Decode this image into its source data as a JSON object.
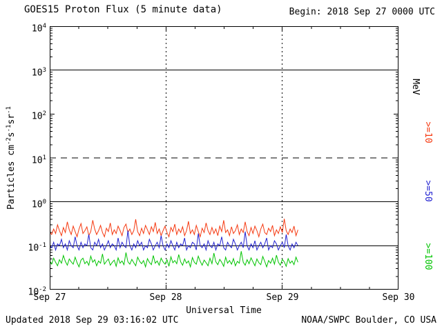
{
  "header": {
    "title": "GOES15 Proton Flux (5 minute data)",
    "begin_label": "Begin: 2018 Sep 27 0000 UTC"
  },
  "footer": {
    "updated": "Updated 2018 Sep 29 03:16:02 UTC",
    "credit": "NOAA/SWPC Boulder, CO USA"
  },
  "axes": {
    "x_label": "Universal Time",
    "x_ticks": [
      "Sep 27",
      "Sep 28",
      "Sep 29",
      "Sep 30"
    ],
    "y_ticks": [
      {
        "b": "10",
        "e": "4"
      },
      {
        "b": "10",
        "e": "3"
      },
      {
        "b": "10",
        "e": "2"
      },
      {
        "b": "10",
        "e": "1"
      },
      {
        "b": "10",
        "e": "0"
      },
      {
        "b": "10",
        "e": "-1"
      },
      {
        "b": "10",
        "e": "-2"
      }
    ],
    "y_label": {
      "p1": "Particles cm",
      "e1": "-2",
      "p2": "s",
      "e2": "-1",
      "p3": "sr",
      "e3": "-1"
    }
  },
  "right_labels": {
    "unit": "MeV",
    "ge10": ">=10",
    "ge50": ">=50",
    "ge100": ">=100"
  },
  "colors": {
    "ge10": "#f5380f",
    "ge50": "#2020d0",
    "ge100": "#00c400",
    "frame": "#000000"
  },
  "chart_data": {
    "type": "line",
    "title": "GOES15 Proton Flux (5 minute data)",
    "xlabel": "Universal Time",
    "ylabel": "Particles cm^-2 s^-1 sr^-1",
    "begin": "2018 Sep 27 0000 UTC",
    "updated": "2018 Sep 29 03:16:02 UTC",
    "y_scale": "log",
    "ylim": [
      0.01,
      10000
    ],
    "x_span_days": 3,
    "x_tick_labels": [
      "Sep 27",
      "Sep 28",
      "Sep 29",
      "Sep 30"
    ],
    "gridlines": {
      "h_solid": [
        1000,
        1,
        0.1
      ],
      "h_dashed": [
        10
      ],
      "v_dashed_days": [
        1,
        2
      ]
    },
    "series": [
      {
        "key": "ge10",
        "name": ">=10 MeV",
        "color": "#f5380f",
        "start_day": 0,
        "end_day": 2.135,
        "values": [
          0.21,
          0.18,
          0.24,
          0.19,
          0.3,
          0.22,
          0.17,
          0.26,
          0.2,
          0.35,
          0.23,
          0.18,
          0.28,
          0.21,
          0.16,
          0.24,
          0.32,
          0.19,
          0.22,
          0.27,
          0.17,
          0.21,
          0.38,
          0.24,
          0.18,
          0.22,
          0.29,
          0.2,
          0.16,
          0.25,
          0.21,
          0.33,
          0.18,
          0.23,
          0.19,
          0.28,
          0.22,
          0.17,
          0.26,
          0.31,
          0.2,
          0.24,
          0.18,
          0.22,
          0.4,
          0.21,
          0.17,
          0.25,
          0.19,
          0.29,
          0.23,
          0.18,
          0.27,
          0.21,
          0.34,
          0.19,
          0.24,
          0.17,
          0.22,
          0.28,
          0.2,
          0.16,
          0.26,
          0.21,
          0.31,
          0.18,
          0.24,
          0.2,
          0.27,
          0.17,
          0.22,
          0.36,
          0.19,
          0.23,
          0.18,
          0.29,
          0.21,
          0.16,
          0.25,
          0.2,
          0.33,
          0.22,
          0.18,
          0.26,
          0.19,
          0.24,
          0.17,
          0.28,
          0.21,
          0.38,
          0.2,
          0.23,
          0.17,
          0.27,
          0.19,
          0.22,
          0.3,
          0.18,
          0.24,
          0.2,
          0.35,
          0.21,
          0.17,
          0.26,
          0.19,
          0.28,
          0.22,
          0.16,
          0.24,
          0.31,
          0.2,
          0.18,
          0.25,
          0.21,
          0.29,
          0.17,
          0.23,
          0.19,
          0.27,
          0.2,
          0.41,
          0.22,
          0.18,
          0.24,
          0.2,
          0.28,
          0.17,
          0.23
        ]
      },
      {
        "key": "ge50",
        "name": ">=50 MeV",
        "color": "#2020d0",
        "start_day": 0,
        "end_day": 2.135,
        "values": [
          0.1,
          0.09,
          0.12,
          0.08,
          0.11,
          0.1,
          0.14,
          0.09,
          0.11,
          0.08,
          0.13,
          0.1,
          0.09,
          0.16,
          0.1,
          0.08,
          0.12,
          0.09,
          0.11,
          0.1,
          0.18,
          0.09,
          0.08,
          0.12,
          0.1,
          0.14,
          0.09,
          0.11,
          0.08,
          0.1,
          0.13,
          0.09,
          0.11,
          0.1,
          0.08,
          0.15,
          0.09,
          0.12,
          0.1,
          0.09,
          0.22,
          0.1,
          0.08,
          0.11,
          0.09,
          0.13,
          0.1,
          0.12,
          0.08,
          0.1,
          0.09,
          0.14,
          0.11,
          0.08,
          0.1,
          0.12,
          0.09,
          0.17,
          0.1,
          0.08,
          0.11,
          0.09,
          0.13,
          0.1,
          0.08,
          0.12,
          0.09,
          0.11,
          0.1,
          0.15,
          0.08,
          0.1,
          0.09,
          0.12,
          0.11,
          0.08,
          0.19,
          0.1,
          0.09,
          0.11,
          0.08,
          0.13,
          0.1,
          0.09,
          0.12,
          0.08,
          0.11,
          0.1,
          0.16,
          0.09,
          0.08,
          0.12,
          0.1,
          0.09,
          0.14,
          0.11,
          0.08,
          0.1,
          0.12,
          0.09,
          0.21,
          0.1,
          0.08,
          0.11,
          0.09,
          0.13,
          0.08,
          0.1,
          0.12,
          0.09,
          0.11,
          0.15,
          0.08,
          0.1,
          0.09,
          0.13,
          0.11,
          0.08,
          0.1,
          0.12,
          0.09,
          0.18,
          0.1,
          0.08,
          0.11,
          0.09,
          0.12,
          0.1
        ]
      },
      {
        "key": "ge100",
        "name": ">=100 MeV",
        "color": "#00c400",
        "start_day": 0,
        "end_day": 2.135,
        "values": [
          0.045,
          0.038,
          0.052,
          0.042,
          0.035,
          0.048,
          0.04,
          0.06,
          0.044,
          0.036,
          0.05,
          0.043,
          0.038,
          0.055,
          0.041,
          0.033,
          0.047,
          0.052,
          0.039,
          0.044,
          0.036,
          0.058,
          0.042,
          0.048,
          0.035,
          0.045,
          0.04,
          0.065,
          0.038,
          0.044,
          0.05,
          0.036,
          0.042,
          0.047,
          0.034,
          0.053,
          0.04,
          0.045,
          0.037,
          0.07,
          0.043,
          0.038,
          0.049,
          0.041,
          0.035,
          0.055,
          0.044,
          0.039,
          0.046,
          0.033,
          0.051,
          0.042,
          0.037,
          0.06,
          0.04,
          0.045,
          0.036,
          0.052,
          0.043,
          0.038,
          0.048,
          0.034,
          0.056,
          0.041,
          0.046,
          0.039,
          0.063,
          0.043,
          0.036,
          0.05,
          0.04,
          0.045,
          0.033,
          0.054,
          0.042,
          0.038,
          0.058,
          0.044,
          0.036,
          0.047,
          0.041,
          0.035,
          0.052,
          0.039,
          0.068,
          0.043,
          0.037,
          0.049,
          0.042,
          0.034,
          0.055,
          0.04,
          0.046,
          0.038,
          0.051,
          0.035,
          0.044,
          0.04,
          0.075,
          0.042,
          0.036,
          0.048,
          0.039,
          0.053,
          0.043,
          0.035,
          0.05,
          0.041,
          0.037,
          0.057,
          0.044,
          0.033,
          0.046,
          0.04,
          0.052,
          0.038,
          0.061,
          0.042,
          0.036,
          0.049,
          0.043,
          0.034,
          0.051,
          0.04,
          0.045,
          0.037,
          0.055,
          0.042
        ]
      }
    ]
  }
}
